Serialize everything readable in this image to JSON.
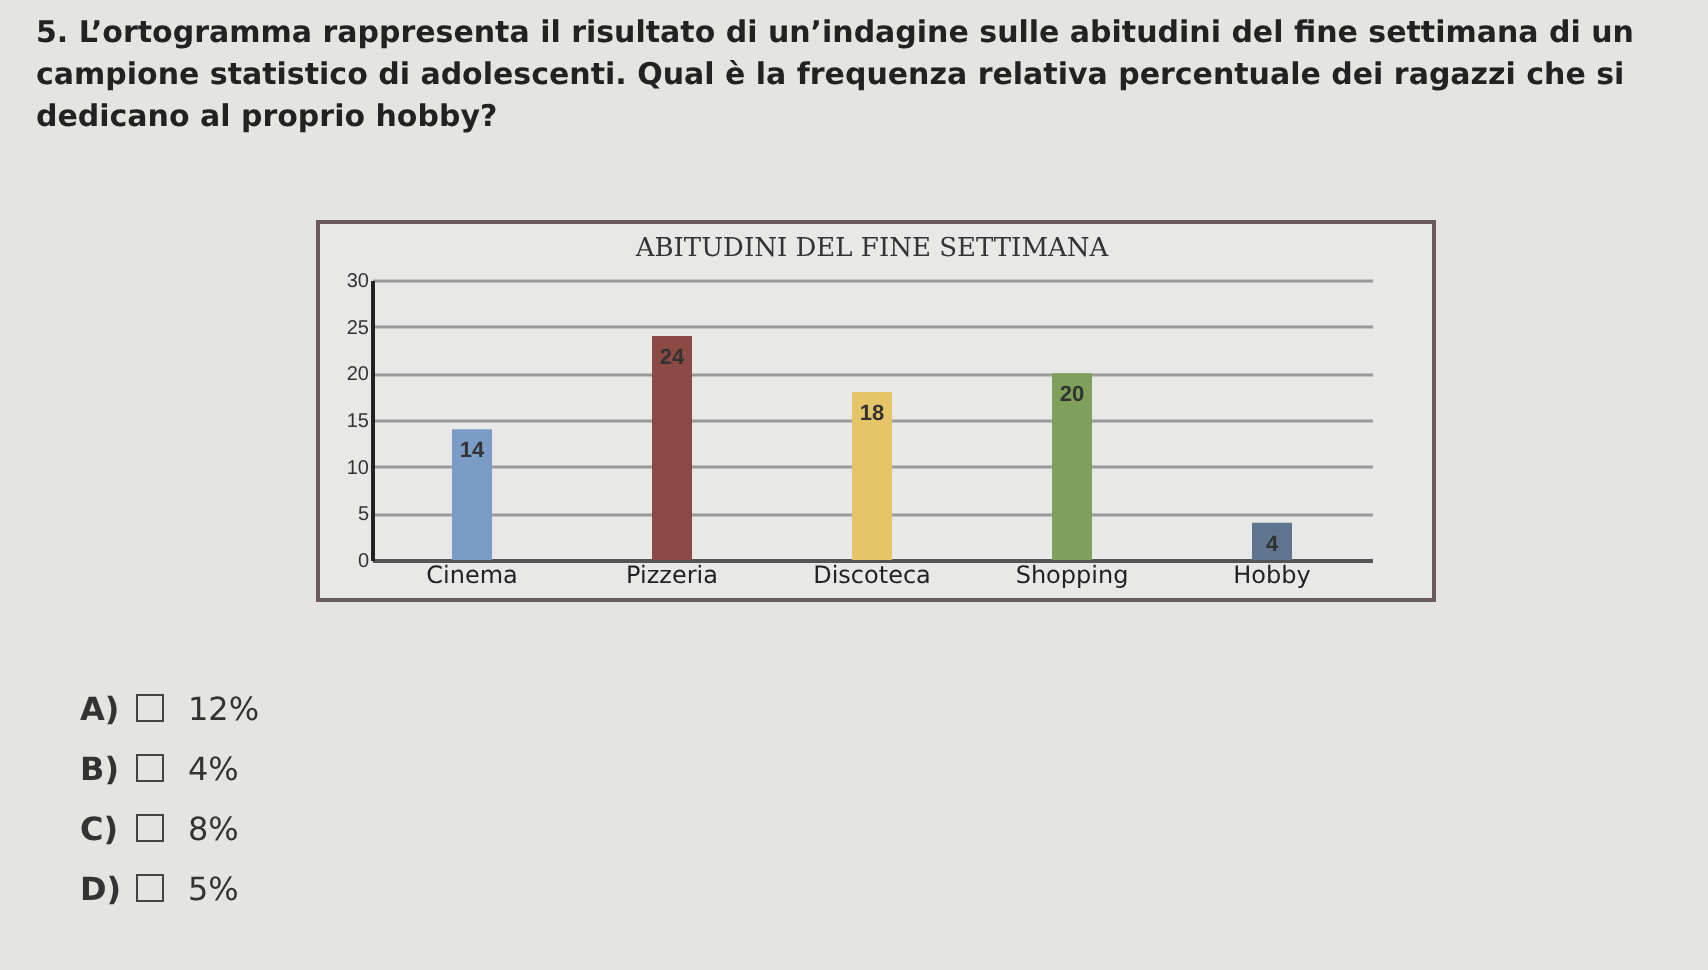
{
  "chart_data": {
    "type": "bar",
    "title": "ABITUDINI DEL FINE SETTIMANA",
    "categories": [
      "Cinema",
      "Pizzeria",
      "Discoteca",
      "Shopping",
      "Hobby"
    ],
    "values": [
      14,
      24,
      18,
      20,
      4
    ],
    "colors": [
      "#7a9cc6",
      "#8b4a44",
      "#e6c468",
      "#7ea05a",
      "#5f7590"
    ],
    "ylim": [
      0,
      30
    ],
    "yticks": [
      0,
      5,
      10,
      15,
      20,
      25,
      30
    ],
    "grid": "y",
    "data_labels": true,
    "annotations": [
      "5. L’ortogramma rappresenta il risultato di un’indagine sulle abitudini del fine settimana di un campione statistico di adolescenti. Qual è la frequenza relativa percentuale dei ragazzi che si dedicano al proprio hobby?",
      "A) 12%",
      "B) 4%",
      "C) 8%",
      "D) 5%"
    ]
  }
}
